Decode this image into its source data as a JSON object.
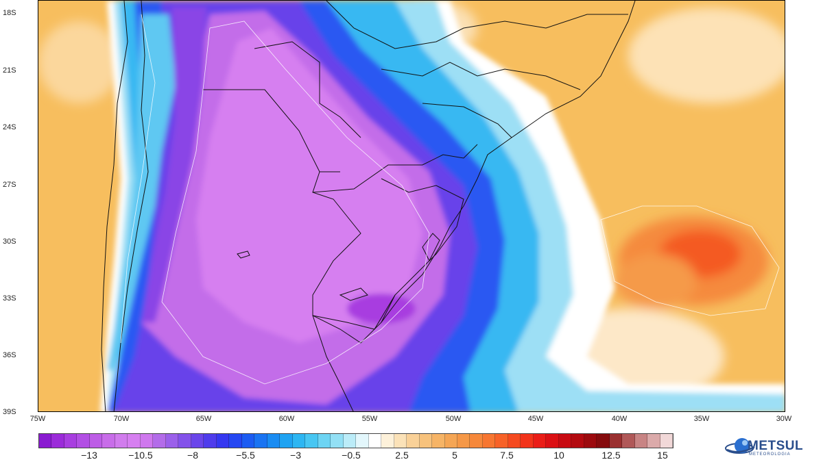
{
  "map": {
    "lat_labels": [
      "18S",
      "21S",
      "24S",
      "27S",
      "30S",
      "33S",
      "36S",
      "39S"
    ],
    "lon_labels": [
      "75W",
      "70W",
      "65W",
      "60W",
      "55W",
      "50W",
      "45W",
      "40W",
      "35W",
      "30W"
    ]
  },
  "legend": {
    "tick_labels": [
      "−13",
      "−10.5",
      "−8",
      "−5.5",
      "−3",
      "−0.5",
      "2.5",
      "5",
      "7.5",
      "10",
      "12.5",
      "15"
    ],
    "colors": [
      "#8a1bd1",
      "#9b2bd9",
      "#a83ee0",
      "#b24fe4",
      "#bd5de6",
      "#c86de9",
      "#d17ced",
      "#d67ff0",
      "#cf78ee",
      "#b36ce9",
      "#9b60ea",
      "#8352ea",
      "#6a45ea",
      "#4f3cec",
      "#3538f0",
      "#2547f2",
      "#1c5cf2",
      "#1a74f2",
      "#1a8cf2",
      "#1fa3f2",
      "#2db6f2",
      "#47c6f2",
      "#6dd4f3",
      "#93e0f5",
      "#bbecf8",
      "#e3f7fc",
      "#ffffff",
      "#fdf1da",
      "#fbe2b8",
      "#f9d198",
      "#f7c27c",
      "#f6b466",
      "#f5a655",
      "#f59847",
      "#f6883b",
      "#f77631",
      "#f76228",
      "#f54a20",
      "#f2331a",
      "#ea1d17",
      "#db1014",
      "#c80b12",
      "#b30a10",
      "#9c0a0e",
      "#850b0d",
      "#9a3030",
      "#b05858",
      "#c88484",
      "#dbaaaa",
      "#f1d8d8"
    ],
    "accent_colors": {
      "cold_deep": "#c46ee9",
      "cold_blue": "#2c3cf0",
      "cyan": "#4cc3f2",
      "warm": "#f5b24a",
      "hot": "#f45a24"
    }
  },
  "brand": {
    "name": "METSUL",
    "subtitle": "METEOROLOGIA"
  }
}
